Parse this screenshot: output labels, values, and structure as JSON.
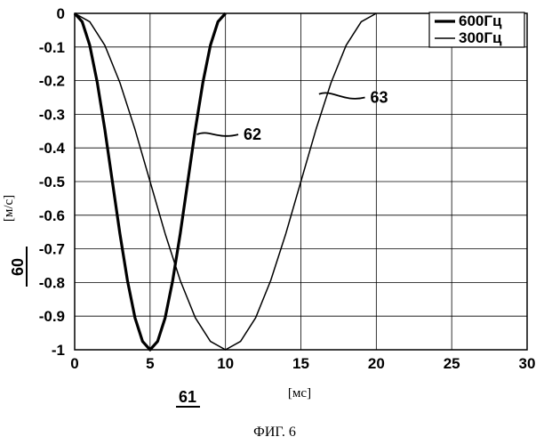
{
  "chart_data": {
    "type": "line",
    "title": "",
    "xlabel": "[мс]",
    "ylabel": "[м/с]",
    "xlim": [
      0,
      30
    ],
    "ylim": [
      -1,
      0
    ],
    "grid": true,
    "legend_position": "top-right",
    "xticks": [
      "0",
      "5",
      "10",
      "15",
      "20",
      "25",
      "30"
    ],
    "yticks": [
      "0",
      "-0.1",
      "-0.2",
      "-0.3",
      "-0.4",
      "-0.5",
      "-0.6",
      "-0.7",
      "-0.8",
      "-0.9",
      "-1"
    ],
    "series": [
      {
        "name": "600Гц",
        "stroke_width": 3.2,
        "x": [
          0,
          0.5,
          1,
          1.5,
          2,
          2.5,
          3,
          3.5,
          4,
          4.5,
          5,
          5.5,
          6,
          6.5,
          7,
          7.5,
          8,
          8.5,
          9,
          9.5,
          10
        ],
        "y": [
          0,
          -0.025,
          -0.095,
          -0.206,
          -0.345,
          -0.5,
          -0.655,
          -0.794,
          -0.905,
          -0.975,
          -1,
          -0.975,
          -0.905,
          -0.794,
          -0.655,
          -0.5,
          -0.345,
          -0.206,
          -0.095,
          -0.025,
          0
        ]
      },
      {
        "name": "300Гц",
        "stroke_width": 1.5,
        "x": [
          0,
          1,
          2,
          3,
          4,
          5,
          6,
          7,
          8,
          9,
          10,
          11,
          12,
          13,
          14,
          15,
          16,
          17,
          18,
          19,
          20
        ],
        "y": [
          0,
          -0.025,
          -0.095,
          -0.206,
          -0.345,
          -0.5,
          -0.655,
          -0.794,
          -0.905,
          -0.975,
          -1,
          -0.975,
          -0.905,
          -0.794,
          -0.655,
          -0.5,
          -0.345,
          -0.206,
          -0.095,
          -0.025,
          0
        ]
      }
    ],
    "annotations": [
      {
        "text": "62",
        "x": 11.2,
        "y": -0.36,
        "target_x": 8.1,
        "target_y": -0.36
      },
      {
        "text": "63",
        "x": 19.6,
        "y": -0.25,
        "target_x": 16.2,
        "target_y": -0.24
      }
    ]
  },
  "figure_labels": {
    "left_ref": "60",
    "bottom_ref": "61",
    "caption": "ФИГ. 6"
  }
}
